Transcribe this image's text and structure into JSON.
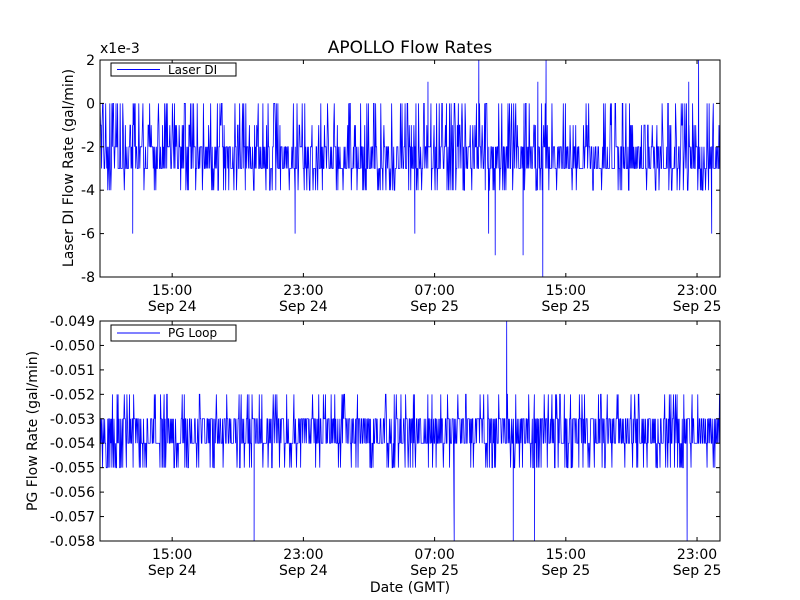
{
  "figure": {
    "title": "APOLLO Flow Rates",
    "xlabel": "Date (GMT)"
  },
  "chart_data": [
    {
      "type": "line",
      "ylabel": "Laser DI Flow Rate (gal/min)",
      "yoffset_label": "x1e-3",
      "ylim": [
        -8,
        2
      ],
      "y_ticks": [
        "2",
        "0",
        "-2",
        "-4",
        "-6",
        "-8"
      ],
      "y_tick_values": [
        2,
        0,
        -2,
        -4,
        -6,
        -8
      ],
      "x_range_hours": [
        10.6,
        48.4
      ],
      "x_ticks": [
        {
          "hour": 15,
          "time": "15:00",
          "date": "Sep 24"
        },
        {
          "hour": 23,
          "time": "23:00",
          "date": "Sep 24"
        },
        {
          "hour": 31,
          "time": "07:00",
          "date": "Sep 25"
        },
        {
          "hour": 39,
          "time": "15:00",
          "date": "Sep 25"
        },
        {
          "hour": 47,
          "time": "23:00",
          "date": "Sep 25"
        }
      ],
      "legend": {
        "label": "Laser DI",
        "position": "upper-left"
      },
      "color": "#0000ff",
      "series": {
        "name": "Laser DI",
        "baseline_levels": [
          -2,
          -3
        ],
        "typical_range": [
          -4,
          0
        ],
        "spikes": [
          {
            "hour": 30.6,
            "value": 1
          },
          {
            "hour": 33.7,
            "value": 2
          },
          {
            "hour": 37.3,
            "value": 1
          },
          {
            "hour": 37.8,
            "value": 2
          },
          {
            "hour": 46.5,
            "value": 1
          },
          {
            "hour": 47.1,
            "value": 2
          },
          {
            "hour": 12.6,
            "value": -6
          },
          {
            "hour": 22.5,
            "value": -6
          },
          {
            "hour": 29.8,
            "value": -6
          },
          {
            "hour": 34.3,
            "value": -6
          },
          {
            "hour": 34.7,
            "value": -7
          },
          {
            "hour": 36.4,
            "value": -7
          },
          {
            "hour": 37.6,
            "value": -8
          },
          {
            "hour": 47.9,
            "value": -6
          }
        ]
      }
    },
    {
      "type": "line",
      "ylabel": "PG Flow Rate (gal/min)",
      "ylim": [
        -0.058,
        -0.049
      ],
      "y_ticks": [
        "-0.049",
        "-0.050",
        "-0.051",
        "-0.052",
        "-0.053",
        "-0.054",
        "-0.055",
        "-0.056",
        "-0.057",
        "-0.058"
      ],
      "y_tick_values": [
        -0.049,
        -0.05,
        -0.051,
        -0.052,
        -0.053,
        -0.054,
        -0.055,
        -0.056,
        -0.057,
        -0.058
      ],
      "x_range_hours": [
        10.6,
        48.4
      ],
      "x_ticks": [
        {
          "hour": 15,
          "time": "15:00",
          "date": "Sep 24"
        },
        {
          "hour": 23,
          "time": "23:00",
          "date": "Sep 24"
        },
        {
          "hour": 31,
          "time": "07:00",
          "date": "Sep 25"
        },
        {
          "hour": 39,
          "time": "15:00",
          "date": "Sep 25"
        },
        {
          "hour": 47,
          "time": "23:00",
          "date": "Sep 25"
        }
      ],
      "legend": {
        "label": "PG Loop",
        "position": "upper-left"
      },
      "color": "#0000ff",
      "series": {
        "name": "PG Loop",
        "baseline_levels": [
          -0.053,
          -0.054
        ],
        "typical_range": [
          -0.055,
          -0.052
        ],
        "spikes": [
          {
            "hour": 35.4,
            "value": -0.049
          },
          {
            "hour": 20.0,
            "value": -0.058
          },
          {
            "hour": 32.2,
            "value": -0.058
          },
          {
            "hour": 35.8,
            "value": -0.058
          },
          {
            "hour": 37.1,
            "value": -0.058
          },
          {
            "hour": 46.4,
            "value": -0.058
          }
        ]
      }
    }
  ]
}
